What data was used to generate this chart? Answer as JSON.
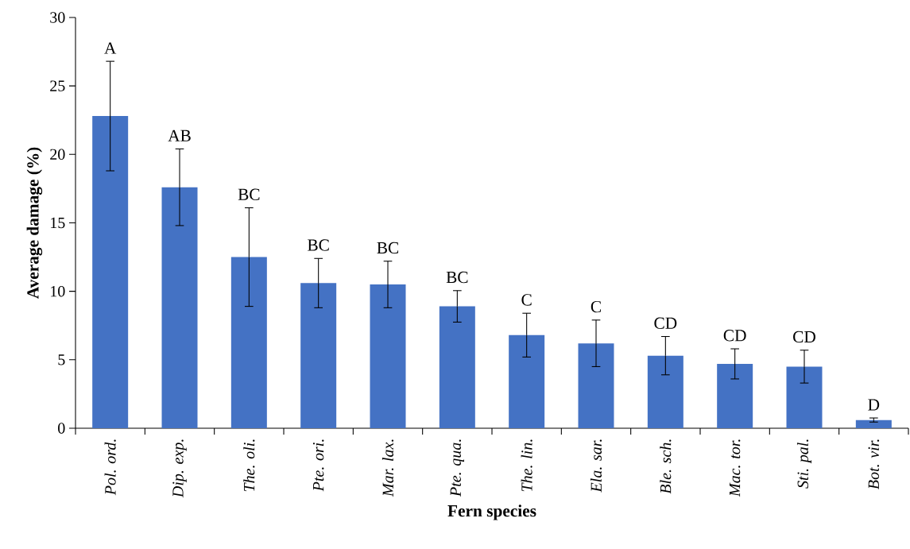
{
  "chart_data": {
    "type": "bar",
    "xlabel": "Fern species",
    "ylabel": "Average damage (%)",
    "categories": [
      "Pol. ord.",
      "Dip. exp.",
      "The. oli.",
      "Pte. ori.",
      "Mar. lax.",
      "Pte. qua.",
      "The. lin.",
      "Ela. sar.",
      "Ble. sch.",
      "Mac. tor.",
      "Sti. pal.",
      "Bot. vir."
    ],
    "values": [
      22.8,
      17.6,
      12.5,
      10.6,
      10.5,
      8.9,
      6.8,
      6.2,
      5.3,
      4.7,
      4.5,
      0.6
    ],
    "errors": [
      4.0,
      2.8,
      3.6,
      1.8,
      1.7,
      1.15,
      1.6,
      1.7,
      1.4,
      1.1,
      1.2,
      0.15
    ],
    "color": "#4472c4",
    "ylim": [
      0,
      30
    ],
    "yticks": [
      0,
      5,
      10,
      15,
      20,
      25,
      30
    ],
    "annotations": [
      {
        "text": "A",
        "x": "Pol. ord.",
        "y": 26.8
      },
      {
        "text": "AB",
        "x": "Dip. exp.",
        "y": 20.4
      },
      {
        "text": "BC",
        "x": "The. oli.",
        "y": 16.1
      },
      {
        "text": "BC",
        "x": "Pte. ori.",
        "y": 12.4
      },
      {
        "text": "BC",
        "x": "Mar. lax.",
        "y": 12.2
      },
      {
        "text": "BC",
        "x": "Pte. qua.",
        "y": 10.05
      },
      {
        "text": "C",
        "x": "The. lin.",
        "y": 8.4
      },
      {
        "text": "C",
        "x": "Ela. sar.",
        "y": 7.9
      },
      {
        "text": "CD",
        "x": "Ble. sch.",
        "y": 6.7
      },
      {
        "text": "CD",
        "x": "Mac. tor.",
        "y": 5.8
      },
      {
        "text": "CD",
        "x": "Sti. pal.",
        "y": 5.7
      },
      {
        "text": "D",
        "x": "Bot. vir.",
        "y": 0.75
      }
    ]
  }
}
